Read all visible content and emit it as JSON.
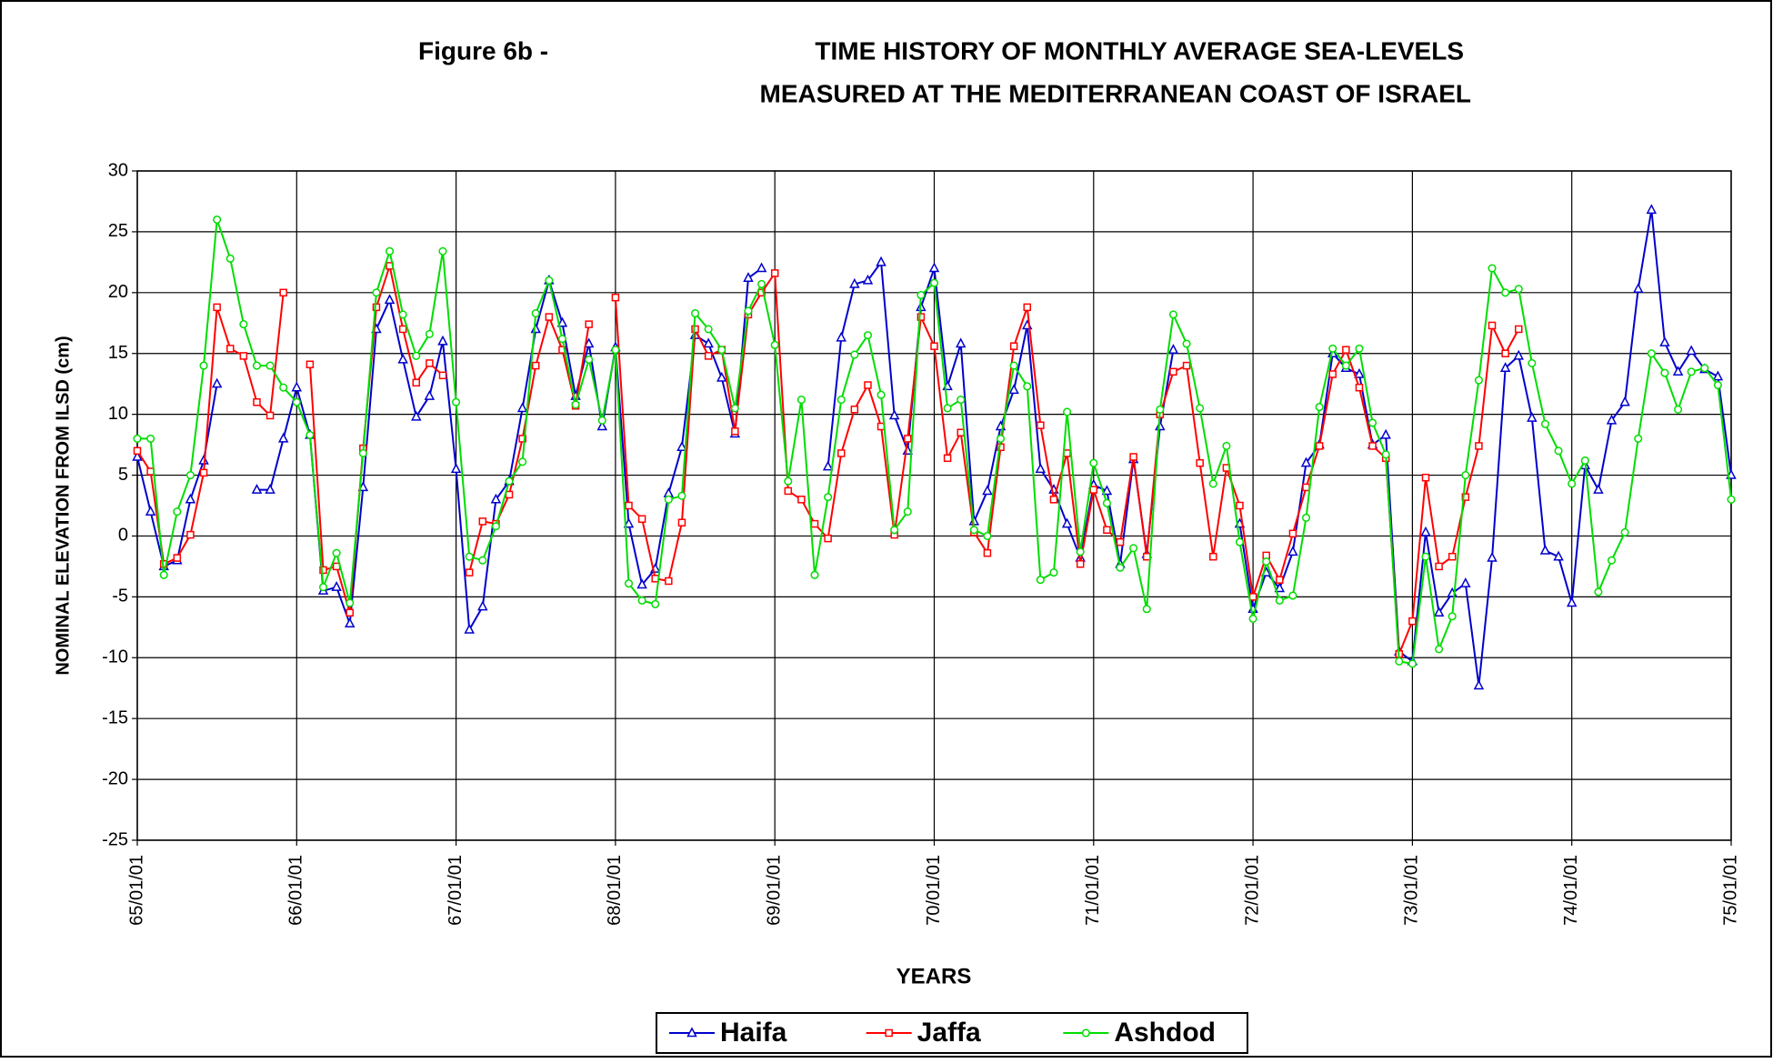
{
  "chart_data": {
    "type": "line",
    "figure_label": "Figure 6b -",
    "title": [
      "TIME HISTORY OF MONTHLY AVERAGE SEA-LEVELS",
      "MEASURED AT THE MEDITERRANEAN COAST OF ISRAEL"
    ],
    "x_label": "YEARS",
    "y_label": "NOMINAL ELEVATION FROM ILSD (cm)",
    "x": [
      "65/01/01",
      "65/02/01",
      "65/03/01",
      "65/04/01",
      "65/05/01",
      "65/06/01",
      "65/07/01",
      "65/08/01",
      "65/09/01",
      "65/10/01",
      "65/11/01",
      "65/12/01",
      "66/01/01",
      "66/02/01",
      "66/03/01",
      "66/04/01",
      "66/05/01",
      "66/06/01",
      "66/07/01",
      "66/08/01",
      "66/09/01",
      "66/10/01",
      "66/11/01",
      "66/12/01",
      "67/01/01",
      "67/02/01",
      "67/03/01",
      "67/04/01",
      "67/05/01",
      "67/06/01",
      "67/07/01",
      "67/08/01",
      "67/09/01",
      "67/10/01",
      "67/11/01",
      "67/12/01",
      "68/01/01",
      "68/02/01",
      "68/03/01",
      "68/04/01",
      "68/05/01",
      "68/06/01",
      "68/07/01",
      "68/08/01",
      "68/09/01",
      "68/10/01",
      "68/11/01",
      "68/12/01",
      "69/01/01",
      "69/02/01",
      "69/03/01",
      "69/04/01",
      "69/05/01",
      "69/06/01",
      "69/07/01",
      "69/08/01",
      "69/09/01",
      "69/10/01",
      "69/11/01",
      "69/12/01",
      "70/01/01",
      "70/02/01",
      "70/03/01",
      "70/04/01",
      "70/05/01",
      "70/06/01",
      "70/07/01",
      "70/08/01",
      "70/09/01",
      "70/10/01",
      "70/11/01",
      "70/12/01",
      "71/01/01",
      "71/02/01",
      "71/03/01",
      "71/04/01",
      "71/05/01",
      "71/06/01",
      "71/07/01",
      "71/08/01",
      "71/09/01",
      "71/10/01",
      "71/11/01",
      "71/12/01",
      "72/01/01",
      "72/02/01",
      "72/03/01",
      "72/04/01",
      "72/05/01",
      "72/06/01",
      "72/07/01",
      "72/08/01",
      "72/09/01",
      "72/10/01",
      "72/11/01",
      "72/12/01",
      "73/01/01",
      "73/02/01",
      "73/03/01",
      "73/04/01",
      "73/05/01",
      "73/06/01",
      "73/07/01",
      "73/08/01",
      "73/09/01",
      "73/10/01",
      "73/11/01",
      "73/12/01",
      "74/01/01",
      "74/02/01",
      "74/03/01",
      "74/04/01",
      "74/05/01",
      "74/06/01",
      "74/07/01",
      "74/08/01",
      "74/09/01",
      "74/10/01",
      "74/11/01",
      "74/12/01",
      "75/01/01"
    ],
    "xlim": [
      "65/01/01",
      "75/01/01"
    ],
    "xticks": [
      "65/01/01",
      "66/01/01",
      "67/01/01",
      "68/01/01",
      "69/01/01",
      "70/01/01",
      "71/01/01",
      "72/01/01",
      "73/01/01",
      "74/01/01",
      "75/01/01"
    ],
    "ylim": [
      -25,
      30
    ],
    "yticks": [
      -25,
      -20,
      -15,
      -10,
      -5,
      0,
      5,
      10,
      15,
      20,
      25,
      30
    ],
    "grid": true,
    "legend": "bottom",
    "series": [
      {
        "name": "Haifa",
        "color": "#0000cc",
        "marker": "triangle",
        "values": [
          6.5,
          2,
          -2.5,
          -2,
          3,
          6.2,
          12.5,
          null,
          null,
          3.8,
          3.8,
          8,
          12.2,
          8.3,
          -4.5,
          -4.2,
          -7.2,
          4,
          17,
          19.4,
          14.5,
          9.8,
          11.5,
          16,
          5.5,
          -7.7,
          -5.8,
          3,
          4.5,
          10.5,
          17,
          21,
          17.5,
          11.5,
          15.8,
          9,
          15.5,
          1,
          -4,
          -2.7,
          3.5,
          7.3,
          16.5,
          15.8,
          13,
          8.4,
          21.2,
          22,
          null,
          null,
          null,
          null,
          5.7,
          16.3,
          20.7,
          21,
          22.5,
          9.9,
          7,
          18.8,
          22,
          12.3,
          15.8,
          1.2,
          3.7,
          9,
          12,
          17.3,
          5.5,
          3.8,
          1,
          -1.8,
          4.2,
          3.7,
          -2.3,
          6.3,
          -1.5,
          9,
          15.3,
          null,
          null,
          null,
          null,
          1,
          -6,
          -3,
          -4.3,
          -1.3,
          6,
          7.5,
          15,
          13.8,
          13.3,
          7.5,
          8.3,
          -9.5,
          -10.3,
          0.3,
          -6.3,
          -4.7,
          -3.9,
          -12.3,
          -1.8,
          13.8,
          14.8,
          9.7,
          -1.2,
          -1.7,
          -5.5,
          5.8,
          3.8,
          9.5,
          11,
          20.3,
          26.8,
          15.9,
          13.5,
          15.2,
          13.7,
          13.1,
          5
        ]
      },
      {
        "name": "Jaffa",
        "color": "#ff0000",
        "marker": "square",
        "values": [
          7,
          5.3,
          -2.3,
          -1.8,
          0.1,
          5.2,
          18.8,
          15.4,
          14.8,
          11,
          9.9,
          20,
          null,
          14.1,
          -2.8,
          -2.5,
          -6.3,
          7.2,
          18.8,
          22.2,
          17,
          12.6,
          14.2,
          13.2,
          null,
          -3,
          1.2,
          1,
          3.4,
          8,
          14,
          18,
          15.3,
          10.7,
          17.4,
          null,
          19.6,
          2.5,
          1.4,
          -3.5,
          -3.7,
          1.1,
          17,
          14.8,
          15.3,
          8.6,
          18.2,
          20,
          21.6,
          3.7,
          3,
          1,
          -0.2,
          6.8,
          10.4,
          12.4,
          9,
          0.1,
          8,
          18,
          15.6,
          6.4,
          8.5,
          0.3,
          -1.4,
          7.3,
          15.6,
          18.8,
          9.1,
          3,
          6.8,
          -2.3,
          3.8,
          0.5,
          -0.5,
          6.5,
          -1.7,
          10,
          13.5,
          14,
          6,
          -1.7,
          5.6,
          2.5,
          -5,
          -1.6,
          -3.6,
          0.2,
          4,
          7.4,
          13.3,
          15.3,
          12.2,
          7.4,
          6.4,
          -9.7,
          -7,
          4.8,
          -2.5,
          -1.7,
          3.2,
          7.4,
          17.3,
          15,
          17,
          null,
          null,
          null,
          null,
          null,
          null,
          null,
          null,
          null,
          null,
          null,
          null,
          null,
          null,
          null,
          null
        ]
      },
      {
        "name": "Ashdod",
        "color": "#00dd00",
        "marker": "circle",
        "values": [
          8,
          8,
          -3.2,
          2,
          5,
          14,
          26,
          22.8,
          17.4,
          14,
          14,
          12.2,
          11,
          8.3,
          -4.2,
          -1.4,
          -5.5,
          6.8,
          20,
          23.4,
          18.2,
          14.8,
          16.6,
          23.4,
          11,
          -1.7,
          -2,
          0.8,
          4.5,
          6.1,
          18.3,
          21,
          16.2,
          10.8,
          14.5,
          9.5,
          15.3,
          -3.9,
          -5.3,
          -5.6,
          3,
          3.3,
          18.3,
          17,
          15.3,
          10.5,
          18.5,
          20.7,
          15.7,
          4.5,
          11.2,
          -3.2,
          3.2,
          11.2,
          14.9,
          16.5,
          11.6,
          0.5,
          2,
          19.8,
          20.8,
          10.5,
          11.2,
          0.5,
          0,
          8,
          14,
          12.3,
          -3.6,
          -3,
          10.2,
          -1.3,
          6,
          2.7,
          -2.6,
          -1,
          -6,
          10.4,
          18.2,
          15.8,
          10.5,
          4.3,
          7.4,
          -0.5,
          -6.8,
          -2.1,
          -5.3,
          -4.9,
          1.5,
          10.6,
          15.4,
          14,
          15.4,
          9.3,
          6.7,
          -10.3,
          -10.5,
          -1.7,
          -9.3,
          -6.6,
          5,
          12.8,
          22,
          20,
          20.3,
          14.2,
          9.2,
          7,
          4.3,
          6.2,
          -4.6,
          -2,
          0.3,
          8,
          15,
          13.4,
          10.4,
          13.5,
          13.8,
          12.4,
          3
        ]
      }
    ]
  }
}
